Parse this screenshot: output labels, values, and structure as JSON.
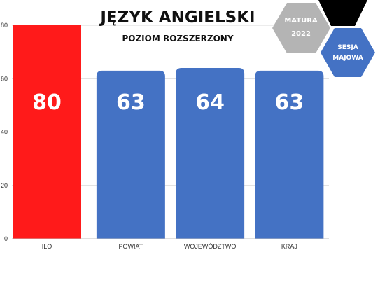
{
  "header": {
    "title": "JĘZYK ANGIELSKI",
    "subtitle": "POZIOM ROZSZERZONY"
  },
  "badges": {
    "matura_line1": "MATURA",
    "matura_line2": "2022",
    "sesja_line1": "SESJA",
    "sesja_line2": "MAJOWA"
  },
  "colors": {
    "highlight": "#ff1a1a",
    "bar": "#4472c4",
    "grid": "#d9d9d9",
    "badge_gray": "#b4b4b4",
    "badge_blue": "#4472c4",
    "badge_black": "#000000"
  },
  "chart_data": {
    "type": "bar",
    "title": "JĘZYK ANGIELSKI",
    "subtitle": "POZIOM ROZSZERZONY",
    "categories": [
      "ILO",
      "POWIAT",
      "WOJEWÓDZTWO",
      "KRAJ"
    ],
    "values": [
      80,
      63,
      64,
      63
    ],
    "data_labels": [
      "80",
      "63",
      "64",
      "63"
    ],
    "highlight_index": 0,
    "xlabel": "",
    "ylabel": "",
    "ylim": [
      0,
      80
    ],
    "yticks": [
      0,
      20,
      40,
      60,
      80
    ],
    "grid": true,
    "legend": "none"
  }
}
